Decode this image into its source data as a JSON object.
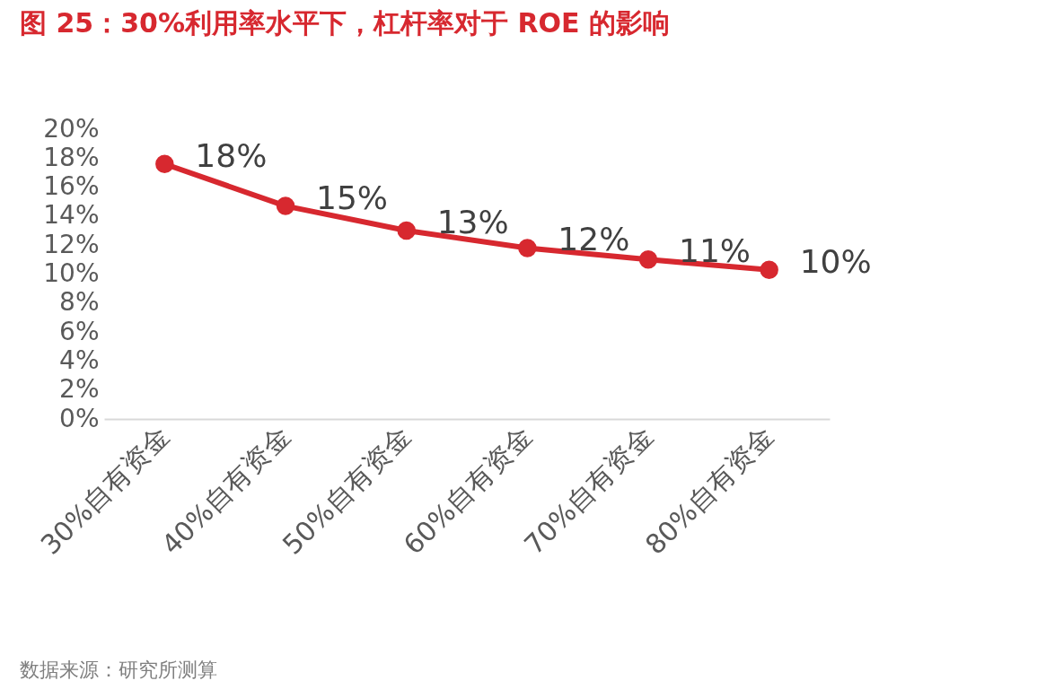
{
  "chart_data": {
    "type": "line",
    "title": "图 25：30%利用率水平下，杠杆率对于 ROE 的影响",
    "categories": [
      "30%自有资金",
      "40%自有资金",
      "50%自有资金",
      "60%自有资金",
      "70%自有资金",
      "80%自有资金"
    ],
    "series": [
      {
        "color": "#d7282f",
        "values": [
          17.6,
          14.7,
          13.0,
          11.8,
          11.0,
          10.3
        ],
        "value_labels": [
          "18%",
          "15%",
          "13%",
          "12%",
          "11%",
          "10%"
        ]
      }
    ],
    "ylim": [
      0,
      20
    ],
    "yticks": [
      {
        "value": 0,
        "label": "0%"
      },
      {
        "value": 2,
        "label": "2%"
      },
      {
        "value": 4,
        "label": "4%"
      },
      {
        "value": 6,
        "label": "6%"
      },
      {
        "value": 8,
        "label": "8%"
      },
      {
        "value": 10,
        "label": "10%"
      },
      {
        "value": 12,
        "label": "12%"
      },
      {
        "value": 14,
        "label": "14%"
      },
      {
        "value": 16,
        "label": "16%"
      },
      {
        "value": 18,
        "label": "18%"
      },
      {
        "value": 20,
        "label": "20%"
      }
    ],
    "marker": "circle",
    "grid": false,
    "annotations": [
      "数据来源：研究所测算"
    ]
  }
}
